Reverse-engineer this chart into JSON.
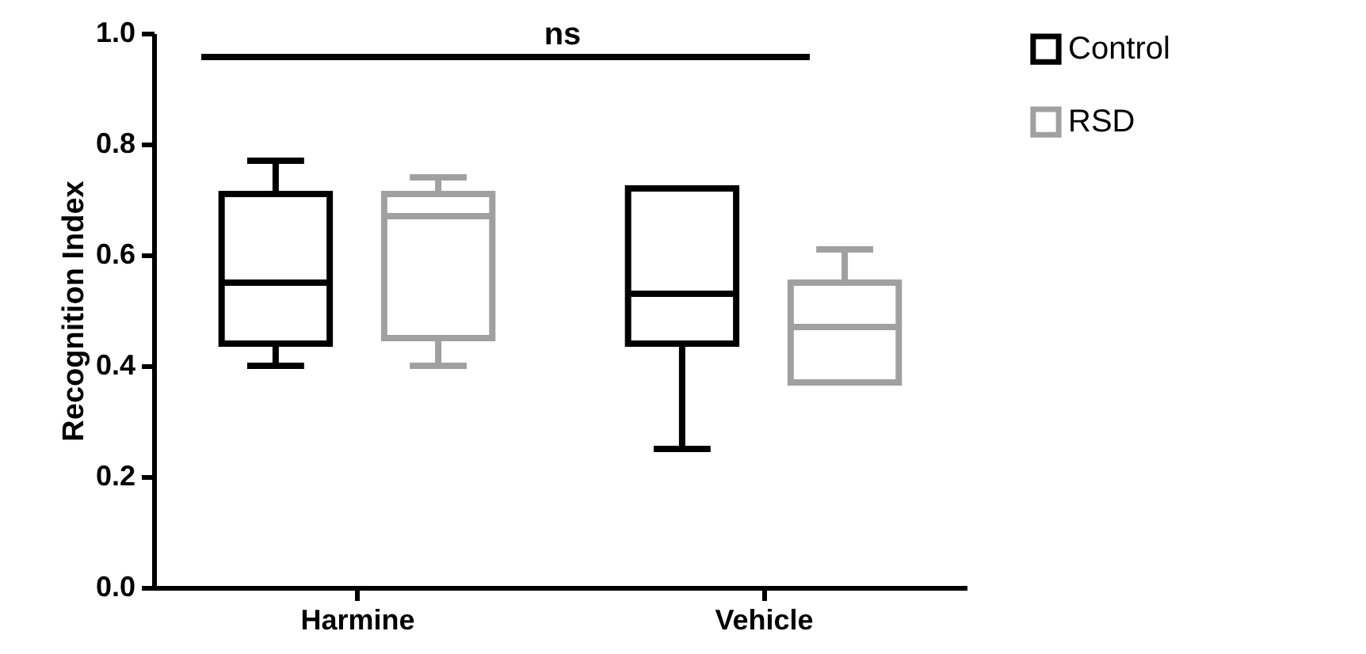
{
  "chart_data": {
    "type": "box",
    "ylabel": "Recognition Index",
    "categories": [
      "Harmine",
      "Vehicle"
    ],
    "series": [
      {
        "name": "Control",
        "color": "#000000",
        "boxes": [
          {
            "low": 0.4,
            "q1": 0.44,
            "median": 0.55,
            "q3": 0.71,
            "high": 0.77
          },
          {
            "low": 0.25,
            "q1": 0.44,
            "median": 0.53,
            "q3": 0.72,
            "high": 0.72
          }
        ]
      },
      {
        "name": "RSD",
        "color": "#a0a0a0",
        "boxes": [
          {
            "low": 0.4,
            "q1": 0.45,
            "median": 0.67,
            "q3": 0.71,
            "high": 0.74
          },
          {
            "low": 0.37,
            "q1": 0.37,
            "median": 0.47,
            "q3": 0.55,
            "high": 0.61
          }
        ]
      }
    ],
    "ylim": [
      0,
      1
    ],
    "yticks": [
      {
        "value": 0,
        "label": "0.0"
      },
      {
        "value": 0.2,
        "label": "0.2"
      },
      {
        "value": 0.4,
        "label": "0.4"
      },
      {
        "value": 0.6,
        "label": "0.6"
      },
      {
        "value": 0.8,
        "label": "0.8"
      },
      {
        "value": 1,
        "label": "1.0"
      }
    ],
    "annotations": [
      "ns"
    ],
    "grid": false,
    "legend": "top right"
  }
}
